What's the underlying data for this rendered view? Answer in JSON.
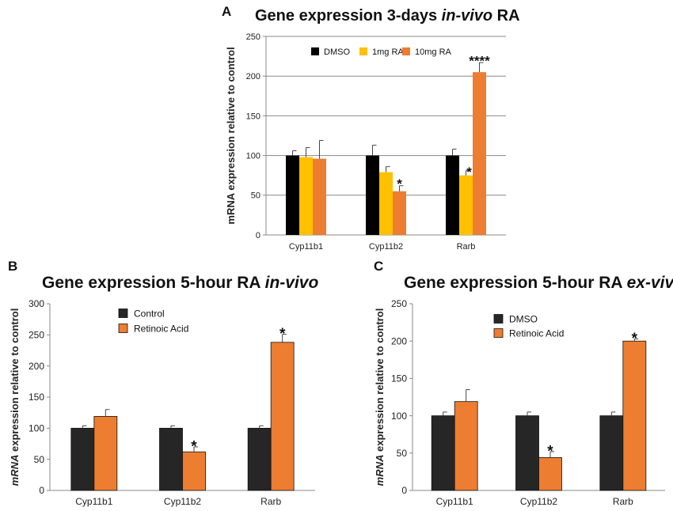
{
  "panels": [
    {
      "label": "A",
      "title_parts": [
        [
          "Gene expression 3-days ",
          false
        ],
        [
          "in-vivo",
          true
        ],
        [
          " RA",
          false
        ]
      ],
      "ylabel": "mRNA expression relative to control",
      "ylabel_italic_prefix": "",
      "ylabel_rest": "mRNA expression relative to control",
      "chart_data": {
        "type": "bar",
        "categories": [
          "Cyp11b1",
          "Cyp11b2",
          "Rarb"
        ],
        "series": [
          {
            "name": "DMSO",
            "color": "#000000",
            "values": [
              100,
              100,
              100
            ],
            "errors": [
              6,
              13,
              8
            ]
          },
          {
            "name": "1mg RA",
            "color": "#ffc000",
            "values": [
              98,
              79,
              75
            ],
            "errors": [
              12,
              7,
              6
            ]
          },
          {
            "name": "10mg RA",
            "color": "#ed7d31",
            "values": [
              96,
              55,
              205
            ],
            "errors": [
              23,
              7,
              12
            ]
          }
        ],
        "annotations": [
          {
            "category": 1,
            "series": 2,
            "text": "*"
          },
          {
            "category": 2,
            "series": 1,
            "text": "*"
          },
          {
            "category": 2,
            "series": 2,
            "text": "****"
          }
        ],
        "ylim": [
          0,
          250
        ],
        "yticks": [
          0,
          50,
          100,
          150,
          200,
          250
        ],
        "grid": true,
        "legend": "top"
      }
    },
    {
      "label": "B",
      "title_parts": [
        [
          "Gene expression 5-hour RA ",
          false
        ],
        [
          "in-vivo",
          true
        ]
      ],
      "ylabel_italic_prefix": "mRNA",
      "ylabel_rest": " expression relative to control",
      "chart_data": {
        "type": "bar",
        "categories": [
          "Cyp11b1",
          "Cyp11b2",
          "Rarb"
        ],
        "series": [
          {
            "name": "Control",
            "color": "#262626",
            "values": [
              100,
              100,
              100
            ],
            "errors": [
              4,
              4,
              4
            ]
          },
          {
            "name": "Retinoic Acid",
            "color": "#ed7d31",
            "values": [
              119,
              62,
              238
            ],
            "errors": [
              11,
              8,
              13
            ]
          }
        ],
        "annotations": [
          {
            "category": 1,
            "series": 1,
            "text": "*"
          },
          {
            "category": 2,
            "series": 1,
            "text": "*"
          }
        ],
        "ylim": [
          0,
          300
        ],
        "yticks": [
          0,
          50,
          100,
          150,
          200,
          250,
          300
        ],
        "grid": false,
        "legend": "top-left"
      }
    },
    {
      "label": "C",
      "title_parts": [
        [
          "Gene expression 5-hour RA ",
          false
        ],
        [
          "ex-vivo",
          true
        ]
      ],
      "ylabel_italic_prefix": "mRNA",
      "ylabel_rest": " expression relative to control",
      "chart_data": {
        "type": "bar",
        "categories": [
          "Cyp11b1",
          "Cyp11b2",
          "Rarb"
        ],
        "series": [
          {
            "name": "DMSO",
            "color": "#262626",
            "values": [
              100,
              100,
              100
            ],
            "errors": [
              5,
              5,
              5
            ]
          },
          {
            "name": "Retinoic Acid",
            "color": "#ed7d31",
            "values": [
              119,
              44,
              200
            ],
            "errors": [
              16,
              8,
              3
            ]
          }
        ],
        "annotations": [
          {
            "category": 1,
            "series": 1,
            "text": "*"
          },
          {
            "category": 2,
            "series": 1,
            "text": "*"
          }
        ],
        "ylim": [
          0,
          250
        ],
        "yticks": [
          0,
          50,
          100,
          150,
          200,
          250
        ],
        "grid": false,
        "legend": "top-left"
      }
    }
  ]
}
